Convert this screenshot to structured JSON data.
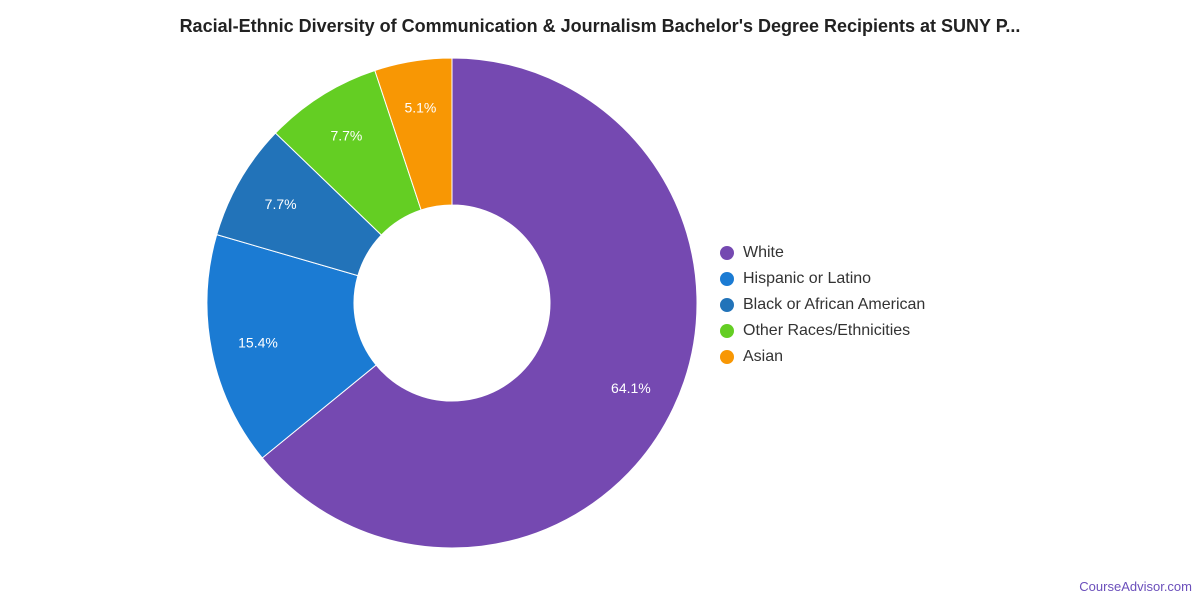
{
  "chart_data": {
    "type": "pie",
    "variant": "donut",
    "title": "Racial-Ethnic Diversity of Communication & Journalism Bachelor's Degree Recipients at SUNY P...",
    "categories": [
      "White",
      "Hispanic or Latino",
      "Black or African American",
      "Other Races/Ethnicities",
      "Asian"
    ],
    "values": [
      64.1,
      15.4,
      7.7,
      7.7,
      5.1
    ],
    "labels": [
      "64.1%",
      "15.4%",
      "7.7%",
      "7.7%",
      "5.1%"
    ],
    "colors": [
      "#7549b1",
      "#1b7bd3",
      "#2273b9",
      "#64ce23",
      "#f89704"
    ],
    "legend_position": "right"
  },
  "footer": {
    "credit": "CourseAdvisor.com"
  }
}
